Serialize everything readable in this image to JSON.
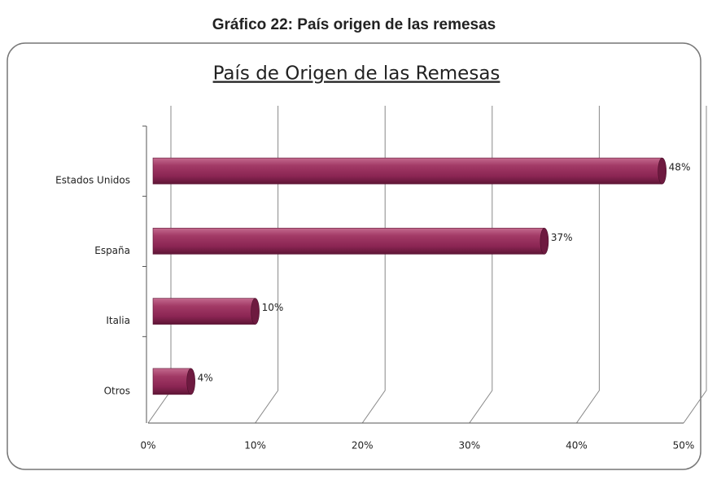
{
  "chart_data": {
    "type": "bar",
    "orientation": "horizontal",
    "heading": "Gráfico 22: País origen de las remesas",
    "title": "País de Origen de las Remesas",
    "categories": [
      "Estados Unidos",
      "España",
      "Italia",
      "Otros"
    ],
    "values": [
      48,
      37,
      10,
      4
    ],
    "value_labels": [
      "48%",
      "37%",
      "10%",
      "4%"
    ],
    "color": "#8b2553",
    "xlim": [
      0,
      50
    ],
    "xticks": [
      {
        "value": 0,
        "label": "0%"
      },
      {
        "value": 10,
        "label": "10%"
      },
      {
        "value": 20,
        "label": "20%"
      },
      {
        "value": 30,
        "label": "30%"
      },
      {
        "value": 40,
        "label": "40%"
      },
      {
        "value": 50,
        "label": "50%"
      }
    ],
    "grid": true
  }
}
